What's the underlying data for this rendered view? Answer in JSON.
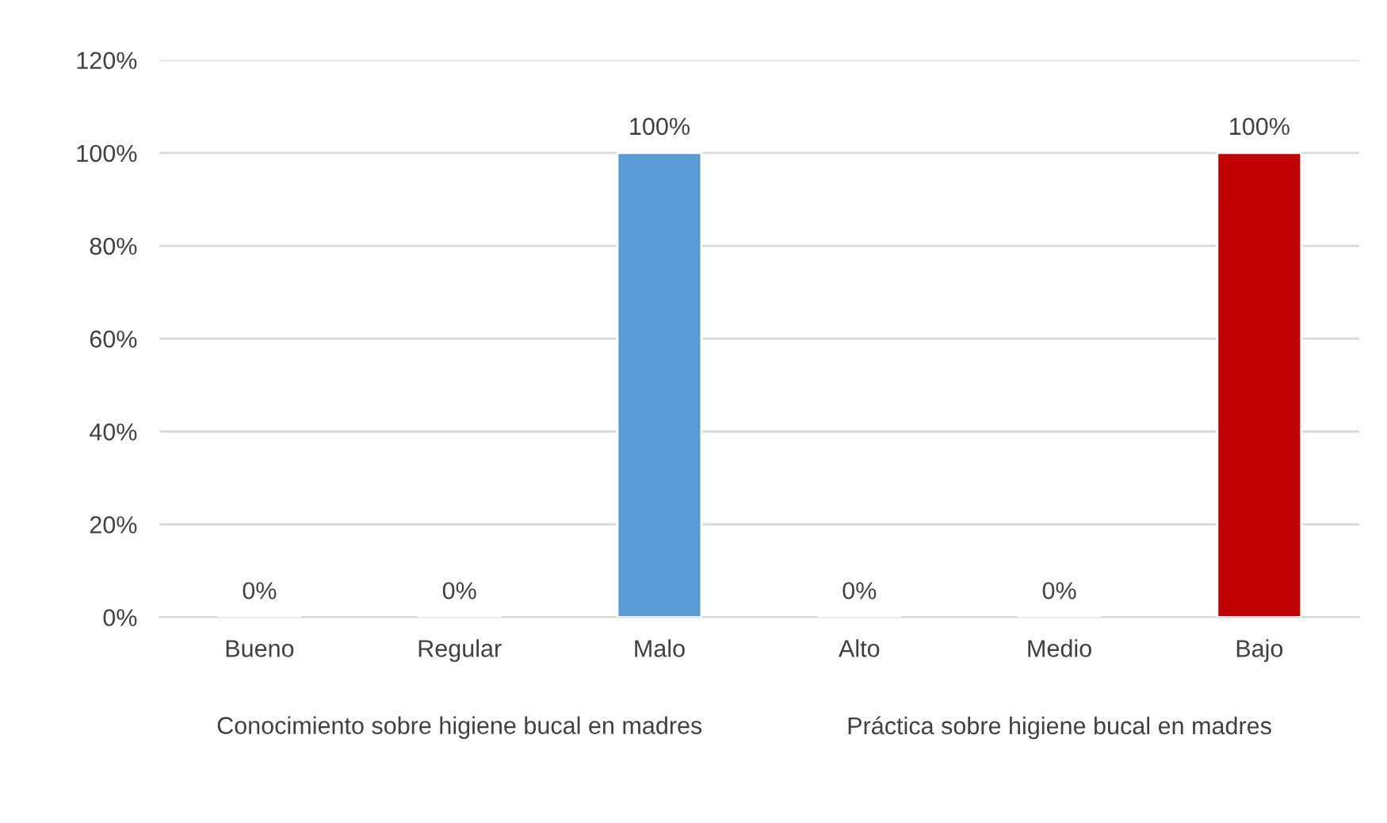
{
  "chart_data": {
    "type": "bar",
    "categories": [
      "Bueno",
      "Regular",
      "Malo",
      "Alto",
      "Medio",
      "Bajo"
    ],
    "values": [
      0,
      0,
      100,
      0,
      0,
      100
    ],
    "colors": [
      null,
      null,
      "#5b9bd5",
      null,
      null,
      "#c00000"
    ],
    "value_labels": [
      "0%",
      "0%",
      "100%",
      "0%",
      "0%",
      "100%"
    ],
    "ylim": [
      0,
      120
    ],
    "yticks": [
      {
        "value": 0,
        "label": "0%"
      },
      {
        "value": 20,
        "label": "20%"
      },
      {
        "value": 40,
        "label": "40%"
      },
      {
        "value": 60,
        "label": "60%"
      },
      {
        "value": 80,
        "label": "80%"
      },
      {
        "value": 100,
        "label": "100%"
      },
      {
        "value": 120,
        "label": "120%"
      }
    ],
    "grid": "y",
    "annotations": [
      "Conocimiento sobre higiene bucal en madres",
      "Práctica sobre higiene bucal en madres"
    ]
  }
}
